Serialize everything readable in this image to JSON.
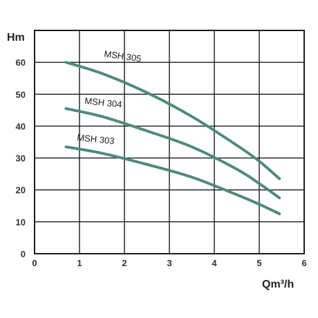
{
  "chart_data": {
    "type": "line",
    "xlabel": "Qm³/h",
    "ylabel": "Hm",
    "xlim": [
      0,
      6
    ],
    "ylim": [
      0,
      70
    ],
    "x_ticks": [
      "0",
      "1",
      "2",
      "3",
      "4",
      "5",
      "6"
    ],
    "y_ticks": [
      "0",
      "10",
      "20",
      "30",
      "40",
      "50",
      "60"
    ],
    "grid": true,
    "line_color": "#4e8a7c",
    "series": [
      {
        "name": "MSH 305",
        "points": [
          [
            0.7,
            60
          ],
          [
            1.5,
            56.5
          ],
          [
            2.5,
            50.5
          ],
          [
            3.5,
            43
          ],
          [
            4.5,
            34
          ],
          [
            5.0,
            29
          ],
          [
            5.45,
            23.5
          ]
        ]
      },
      {
        "name": "MSH 304",
        "points": [
          [
            0.7,
            45.5
          ],
          [
            1.5,
            43
          ],
          [
            2.5,
            38.5
          ],
          [
            3.5,
            33.5
          ],
          [
            4.5,
            26.5
          ],
          [
            5.0,
            22
          ],
          [
            5.45,
            17.5
          ]
        ]
      },
      {
        "name": "MSH 303",
        "points": [
          [
            0.7,
            33.5
          ],
          [
            1.5,
            31.5
          ],
          [
            2.5,
            28
          ],
          [
            3.5,
            24
          ],
          [
            4.5,
            18.5
          ],
          [
            5.0,
            15.5
          ],
          [
            5.45,
            12.5
          ]
        ]
      }
    ]
  }
}
